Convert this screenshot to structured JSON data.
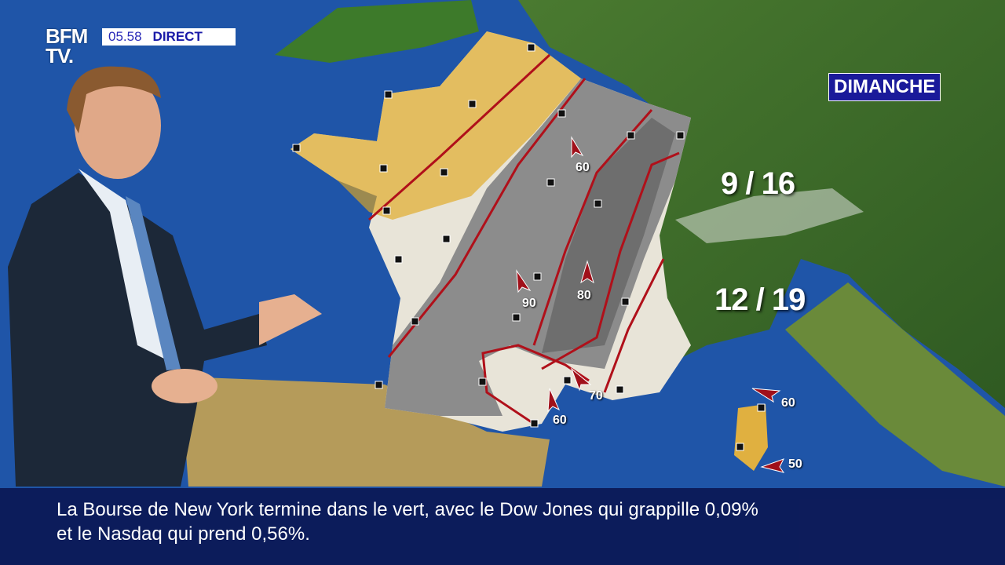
{
  "channel": {
    "logo": "BFM TV.",
    "time": "05.58",
    "live_label": "DIRECT"
  },
  "forecast": {
    "day": "DIMANCHE",
    "temperatures": [
      {
        "label": "9 / 16"
      },
      {
        "label": "12 / 19"
      }
    ],
    "winds": [
      "60",
      "90",
      "80",
      "70",
      "60",
      "60",
      "50"
    ]
  },
  "ticker": {
    "text": "La Bourse de New York termine dans le vert, avec le Dow Jones qui grappille 0,09% et le Nasdaq qui prend 0,56%."
  },
  "colors": {
    "sea": "#1c4fa0",
    "land": "#3f7a2c",
    "rain": "#8c8c8c",
    "sun": "#e0a820",
    "front": "#b0101a",
    "ticker_bg": "#0a1450"
  }
}
